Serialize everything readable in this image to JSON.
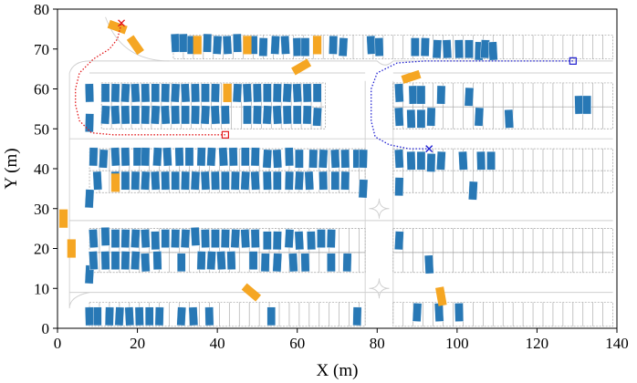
{
  "chart_data": {
    "type": "scatter",
    "title": "",
    "xlabel": "X (m)",
    "ylabel": "Y (m)",
    "xlim": [
      0,
      140
    ],
    "ylim": [
      0,
      80
    ],
    "xticks": [
      0,
      20,
      40,
      60,
      80,
      100,
      120,
      140
    ],
    "yticks": [
      0,
      10,
      20,
      30,
      40,
      50,
      60,
      70,
      80
    ],
    "colors": {
      "parked": "#2878b5",
      "obstacle": "#f5a623",
      "route1": "#e31a1c",
      "route2": "#1f1fd1",
      "lines": "#a0a0a0"
    },
    "parking_rows": [
      {
        "x": [
          29,
          139
        ],
        "y": [
          67.5,
          73.5
        ]
      },
      {
        "x": [
          11,
          67
        ],
        "y": [
          55.5,
          61.5
        ]
      },
      {
        "x": [
          11,
          67
        ],
        "y": [
          50,
          55.5
        ]
      },
      {
        "x": [
          84,
          139
        ],
        "y": [
          55.5,
          61.5
        ]
      },
      {
        "x": [
          84,
          139
        ],
        "y": [
          50,
          55.5
        ]
      },
      {
        "x": [
          8,
          77
        ],
        "y": [
          39.5,
          45
        ]
      },
      {
        "x": [
          8,
          77
        ],
        "y": [
          34,
          39.5
        ]
      },
      {
        "x": [
          84,
          139
        ],
        "y": [
          39.5,
          45
        ]
      },
      {
        "x": [
          84,
          139
        ],
        "y": [
          34,
          39.5
        ]
      },
      {
        "x": [
          8,
          77
        ],
        "y": [
          19,
          25
        ]
      },
      {
        "x": [
          8,
          77
        ],
        "y": [
          14,
          19
        ]
      },
      {
        "x": [
          84,
          139
        ],
        "y": [
          19,
          25
        ]
      },
      {
        "x": [
          84,
          139
        ],
        "y": [
          14,
          19
        ]
      },
      {
        "x": [
          8,
          77
        ],
        "y": [
          0.5,
          6.5
        ]
      },
      {
        "x": [
          84,
          139
        ],
        "y": [
          0.5,
          6.5
        ]
      }
    ],
    "parked_vehicles": [
      {
        "x": 29.5,
        "y": 71.5
      },
      {
        "x": 31.5,
        "y": 71.5
      },
      {
        "x": 33.5,
        "y": 71
      },
      {
        "x": 37.5,
        "y": 71.5
      },
      {
        "x": 40,
        "y": 71
      },
      {
        "x": 42.5,
        "y": 71
      },
      {
        "x": 45,
        "y": 71.5
      },
      {
        "x": 49,
        "y": 71
      },
      {
        "x": 51.5,
        "y": 70.5
      },
      {
        "x": 54.5,
        "y": 71
      },
      {
        "x": 57,
        "y": 71
      },
      {
        "x": 60,
        "y": 70.5
      },
      {
        "x": 62,
        "y": 70.5
      },
      {
        "x": 69,
        "y": 71
      },
      {
        "x": 71.5,
        "y": 70.5
      },
      {
        "x": 78.5,
        "y": 71
      },
      {
        "x": 80.5,
        "y": 70.5
      },
      {
        "x": 89.5,
        "y": 70.5
      },
      {
        "x": 92,
        "y": 70.5
      },
      {
        "x": 95,
        "y": 70
      },
      {
        "x": 97.5,
        "y": 70
      },
      {
        "x": 100.5,
        "y": 70
      },
      {
        "x": 103,
        "y": 70
      },
      {
        "x": 105.5,
        "y": 69.5
      },
      {
        "x": 107,
        "y": 70
      },
      {
        "x": 109,
        "y": 69.5
      },
      {
        "x": 8,
        "y": 59
      },
      {
        "x": 12,
        "y": 59
      },
      {
        "x": 14.5,
        "y": 59
      },
      {
        "x": 17,
        "y": 59
      },
      {
        "x": 19.5,
        "y": 59
      },
      {
        "x": 22,
        "y": 59
      },
      {
        "x": 24.5,
        "y": 59
      },
      {
        "x": 27,
        "y": 59
      },
      {
        "x": 29.5,
        "y": 59
      },
      {
        "x": 32,
        "y": 59
      },
      {
        "x": 34.5,
        "y": 59
      },
      {
        "x": 37,
        "y": 59
      },
      {
        "x": 39.5,
        "y": 59
      },
      {
        "x": 45,
        "y": 59
      },
      {
        "x": 47.5,
        "y": 59
      },
      {
        "x": 50,
        "y": 59
      },
      {
        "x": 52.5,
        "y": 59
      },
      {
        "x": 55,
        "y": 59
      },
      {
        "x": 57.5,
        "y": 59
      },
      {
        "x": 60,
        "y": 59
      },
      {
        "x": 62.5,
        "y": 59
      },
      {
        "x": 65,
        "y": 59
      },
      {
        "x": 8,
        "y": 51.5
      },
      {
        "x": 12,
        "y": 53.5
      },
      {
        "x": 14.5,
        "y": 53.5
      },
      {
        "x": 17,
        "y": 53.5
      },
      {
        "x": 19.5,
        "y": 53.5
      },
      {
        "x": 22,
        "y": 53.5
      },
      {
        "x": 24.5,
        "y": 53.5
      },
      {
        "x": 27,
        "y": 53.5
      },
      {
        "x": 29.5,
        "y": 53.5
      },
      {
        "x": 32,
        "y": 53.5
      },
      {
        "x": 34.5,
        "y": 53.5
      },
      {
        "x": 37,
        "y": 53.5
      },
      {
        "x": 39.5,
        "y": 53.5
      },
      {
        "x": 42,
        "y": 53.5
      },
      {
        "x": 47.5,
        "y": 53.5
      },
      {
        "x": 50,
        "y": 53.5
      },
      {
        "x": 52.5,
        "y": 53.5
      },
      {
        "x": 55,
        "y": 53.5
      },
      {
        "x": 57.5,
        "y": 53.5
      },
      {
        "x": 60,
        "y": 53.5
      },
      {
        "x": 62.5,
        "y": 53.5
      },
      {
        "x": 65,
        "y": 53
      },
      {
        "x": 85.5,
        "y": 59
      },
      {
        "x": 89,
        "y": 58.5
      },
      {
        "x": 91,
        "y": 58.5
      },
      {
        "x": 96,
        "y": 58.5
      },
      {
        "x": 103,
        "y": 58
      },
      {
        "x": 85.5,
        "y": 53
      },
      {
        "x": 88.5,
        "y": 52.5
      },
      {
        "x": 91,
        "y": 52.5
      },
      {
        "x": 93.5,
        "y": 53
      },
      {
        "x": 105.5,
        "y": 53
      },
      {
        "x": 113,
        "y": 52.5
      },
      {
        "x": 130.5,
        "y": 56
      },
      {
        "x": 132.5,
        "y": 56
      },
      {
        "x": 9,
        "y": 43
      },
      {
        "x": 11.5,
        "y": 42.5
      },
      {
        "x": 14.5,
        "y": 43
      },
      {
        "x": 17,
        "y": 43
      },
      {
        "x": 20,
        "y": 43
      },
      {
        "x": 22,
        "y": 43
      },
      {
        "x": 25,
        "y": 43
      },
      {
        "x": 27.5,
        "y": 43
      },
      {
        "x": 30.5,
        "y": 43
      },
      {
        "x": 33,
        "y": 43
      },
      {
        "x": 36,
        "y": 43
      },
      {
        "x": 38.5,
        "y": 43
      },
      {
        "x": 41.5,
        "y": 43
      },
      {
        "x": 44,
        "y": 43
      },
      {
        "x": 47,
        "y": 43
      },
      {
        "x": 49.5,
        "y": 43
      },
      {
        "x": 52.5,
        "y": 42.5
      },
      {
        "x": 55,
        "y": 42.5
      },
      {
        "x": 58,
        "y": 43
      },
      {
        "x": 60.5,
        "y": 42.5
      },
      {
        "x": 64,
        "y": 42.5
      },
      {
        "x": 66.5,
        "y": 42.5
      },
      {
        "x": 69.5,
        "y": 42.5
      },
      {
        "x": 72,
        "y": 42.5
      },
      {
        "x": 75,
        "y": 42.5
      },
      {
        "x": 76.5,
        "y": 42.5
      },
      {
        "x": 8,
        "y": 32.5
      },
      {
        "x": 10,
        "y": 37
      },
      {
        "x": 14.5,
        "y": 37
      },
      {
        "x": 17,
        "y": 37
      },
      {
        "x": 19.5,
        "y": 37
      },
      {
        "x": 22,
        "y": 37
      },
      {
        "x": 24.5,
        "y": 37
      },
      {
        "x": 27,
        "y": 37
      },
      {
        "x": 29.5,
        "y": 37
      },
      {
        "x": 32,
        "y": 37
      },
      {
        "x": 34.5,
        "y": 37
      },
      {
        "x": 37,
        "y": 37
      },
      {
        "x": 39.5,
        "y": 37
      },
      {
        "x": 42,
        "y": 37
      },
      {
        "x": 44.5,
        "y": 37
      },
      {
        "x": 47,
        "y": 37
      },
      {
        "x": 49.5,
        "y": 37
      },
      {
        "x": 52.5,
        "y": 37
      },
      {
        "x": 55,
        "y": 37
      },
      {
        "x": 58,
        "y": 37
      },
      {
        "x": 60.5,
        "y": 37
      },
      {
        "x": 63,
        "y": 37
      },
      {
        "x": 66.5,
        "y": 37
      },
      {
        "x": 69.5,
        "y": 37
      },
      {
        "x": 72,
        "y": 37
      },
      {
        "x": 76.5,
        "y": 35
      },
      {
        "x": 85.5,
        "y": 42.5
      },
      {
        "x": 88.5,
        "y": 42
      },
      {
        "x": 91,
        "y": 42
      },
      {
        "x": 93.5,
        "y": 41.5
      },
      {
        "x": 96,
        "y": 42
      },
      {
        "x": 101.5,
        "y": 42
      },
      {
        "x": 106,
        "y": 42
      },
      {
        "x": 108.5,
        "y": 42
      },
      {
        "x": 85.5,
        "y": 35.5
      },
      {
        "x": 104,
        "y": 34.5
      },
      {
        "x": 9,
        "y": 22.5
      },
      {
        "x": 12,
        "y": 23
      },
      {
        "x": 14.5,
        "y": 22.5
      },
      {
        "x": 17,
        "y": 22.5
      },
      {
        "x": 19.5,
        "y": 22.5
      },
      {
        "x": 22,
        "y": 22.5
      },
      {
        "x": 24.5,
        "y": 22
      },
      {
        "x": 27,
        "y": 22.5
      },
      {
        "x": 29.5,
        "y": 22.5
      },
      {
        "x": 32,
        "y": 22.5
      },
      {
        "x": 34.5,
        "y": 23
      },
      {
        "x": 37,
        "y": 22.5
      },
      {
        "x": 39.5,
        "y": 22.5
      },
      {
        "x": 42,
        "y": 22.5
      },
      {
        "x": 44.5,
        "y": 22.5
      },
      {
        "x": 47,
        "y": 22.5
      },
      {
        "x": 49.5,
        "y": 22.5
      },
      {
        "x": 52.5,
        "y": 22
      },
      {
        "x": 55,
        "y": 22
      },
      {
        "x": 58,
        "y": 22.5
      },
      {
        "x": 60.5,
        "y": 22
      },
      {
        "x": 63.5,
        "y": 22
      },
      {
        "x": 66,
        "y": 22.5
      },
      {
        "x": 68.5,
        "y": 22.5
      },
      {
        "x": 8,
        "y": 13.5
      },
      {
        "x": 9,
        "y": 17
      },
      {
        "x": 12,
        "y": 17
      },
      {
        "x": 14.5,
        "y": 17
      },
      {
        "x": 17,
        "y": 17
      },
      {
        "x": 19.5,
        "y": 17
      },
      {
        "x": 22,
        "y": 16.5
      },
      {
        "x": 25,
        "y": 17
      },
      {
        "x": 31,
        "y": 16.5
      },
      {
        "x": 36,
        "y": 17
      },
      {
        "x": 38.5,
        "y": 17
      },
      {
        "x": 41,
        "y": 17
      },
      {
        "x": 43.5,
        "y": 17
      },
      {
        "x": 49,
        "y": 17
      },
      {
        "x": 52,
        "y": 16.5
      },
      {
        "x": 55,
        "y": 16.5
      },
      {
        "x": 59,
        "y": 16.5
      },
      {
        "x": 62,
        "y": 16.5
      },
      {
        "x": 68.5,
        "y": 16.5
      },
      {
        "x": 72.5,
        "y": 16.5
      },
      {
        "x": 85.5,
        "y": 22
      },
      {
        "x": 93,
        "y": 16
      },
      {
        "x": 8,
        "y": 3
      },
      {
        "x": 10,
        "y": 3
      },
      {
        "x": 13,
        "y": 3
      },
      {
        "x": 15.5,
        "y": 3
      },
      {
        "x": 18,
        "y": 3
      },
      {
        "x": 20.5,
        "y": 3
      },
      {
        "x": 23,
        "y": 3
      },
      {
        "x": 25.5,
        "y": 3
      },
      {
        "x": 31,
        "y": 3
      },
      {
        "x": 34,
        "y": 3
      },
      {
        "x": 38,
        "y": 3
      },
      {
        "x": 53.5,
        "y": 3
      },
      {
        "x": 75,
        "y": 3
      },
      {
        "x": 90,
        "y": 4
      },
      {
        "x": 95.5,
        "y": 4
      },
      {
        "x": 100.5,
        "y": 4
      }
    ],
    "obstacles": [
      {
        "x": 15,
        "y": 75.5,
        "angle": -70
      },
      {
        "x": 19.5,
        "y": 71,
        "angle": -35
      },
      {
        "x": 35,
        "y": 71,
        "angle": 0
      },
      {
        "x": 47.5,
        "y": 71,
        "angle": 0
      },
      {
        "x": 65,
        "y": 71,
        "angle": 0
      },
      {
        "x": 61,
        "y": 65.5,
        "angle": 60
      },
      {
        "x": 88.5,
        "y": 63,
        "angle": 72
      },
      {
        "x": 42.5,
        "y": 59,
        "angle": 0
      },
      {
        "x": 14.5,
        "y": 36.5,
        "angle": 0
      },
      {
        "x": 1.5,
        "y": 27.5,
        "angle": 0
      },
      {
        "x": 3.5,
        "y": 20,
        "angle": 0
      },
      {
        "x": 48.5,
        "y": 9,
        "angle": -50
      },
      {
        "x": 96,
        "y": 8,
        "angle": -10
      }
    ],
    "route1": {
      "start": {
        "x": 42,
        "y": 48.5
      },
      "goal": {
        "x": 16,
        "y": 76.5
      },
      "points": [
        [
          42,
          48.5
        ],
        [
          14,
          48.5
        ],
        [
          8.5,
          49
        ],
        [
          5.5,
          52
        ],
        [
          4.5,
          56
        ],
        [
          4.5,
          60
        ],
        [
          5.5,
          64
        ],
        [
          9,
          67.5
        ],
        [
          13,
          70
        ],
        [
          15,
          72.5
        ],
        [
          16,
          76.5
        ]
      ]
    },
    "route2": {
      "start": {
        "x": 129,
        "y": 67
      },
      "goal": {
        "x": 93,
        "y": 45
      },
      "points": [
        [
          129,
          67
        ],
        [
          92,
          67
        ],
        [
          85,
          66.5
        ],
        [
          80,
          64
        ],
        [
          78.5,
          60
        ],
        [
          78.5,
          52
        ],
        [
          79.5,
          48
        ],
        [
          83,
          46
        ],
        [
          88,
          45
        ],
        [
          93,
          45
        ]
      ]
    }
  }
}
